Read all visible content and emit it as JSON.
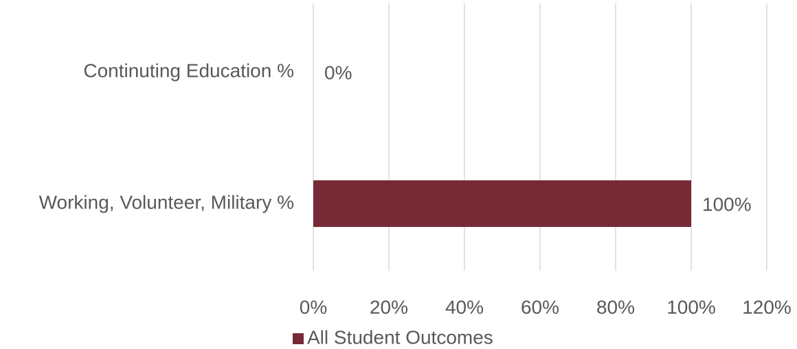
{
  "chart_data": {
    "type": "bar",
    "orientation": "horizontal",
    "categories": [
      "Continuting Education %",
      "Working, Volunteer, Military %"
    ],
    "series": [
      {
        "name": "All Student Outcomes",
        "values": [
          0,
          100
        ],
        "data_labels": [
          "0%",
          "100%"
        ],
        "color": "#762a36"
      }
    ],
    "xlim": [
      0,
      120
    ],
    "xticks": [
      0,
      20,
      40,
      60,
      80,
      100,
      120
    ],
    "xtick_labels": [
      "0%",
      "20%",
      "40%",
      "60%",
      "80%",
      "100%",
      "120%"
    ],
    "grid": true,
    "legend_position": "bottom"
  }
}
